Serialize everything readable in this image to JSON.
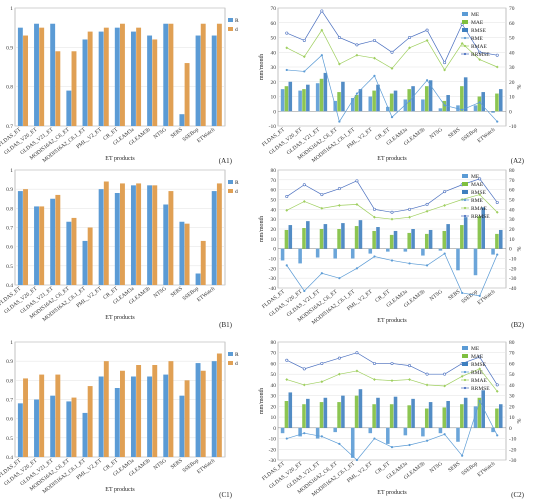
{
  "xlabel": "ET products",
  "categories": [
    "FLDAS_ET",
    "GLDAS_V20_ET",
    "GLDAS_V21_ET",
    "MODIS16A2_C6_ET",
    "MODIS16A2_C6.1_ET",
    "PML_V2_ET",
    "CR_ET",
    "GLEAM3a",
    "GLEAM3b",
    "NTSG",
    "SEBS",
    "SSEBop",
    "ETWatch"
  ],
  "colors": {
    "R": "#5b9bd5",
    "d": "#e0a054",
    "ME": "#5b9bd5",
    "MAE": "#7fbf3f",
    "RMSE": "#3f7fbf",
    "RME": "#5b9bd5",
    "RMAE": "#9fcf5f",
    "RRMSE": "#4a6fbf"
  },
  "chart_data": [
    {
      "panel": "(A1)",
      "type": "bar",
      "ylim": [
        0.7,
        1.0
      ],
      "yticks": [
        "0.7",
        "0.8",
        "0.9",
        "1"
      ],
      "series": [
        {
          "name": "R",
          "values": [
            0.95,
            0.96,
            0.96,
            0.79,
            0.92,
            0.94,
            0.95,
            0.94,
            0.93,
            0.96,
            0.73,
            0.93,
            0.93
          ]
        },
        {
          "name": "d",
          "values": [
            0.93,
            0.95,
            0.89,
            0.89,
            0.94,
            0.95,
            0.96,
            0.95,
            0.92,
            0.96,
            0.86,
            0.96,
            0.96
          ]
        }
      ]
    },
    {
      "panel": "(A2)",
      "type": "bar-line",
      "ylim": [
        -10,
        70
      ],
      "yticks": [
        "-10",
        "0",
        "10",
        "20",
        "30",
        "40",
        "50",
        "60",
        "70"
      ],
      "ylabel_left": "mm/month",
      "ylabel_right": "%",
      "bars": [
        {
          "name": "ME",
          "values": [
            15,
            14,
            19,
            7,
            9,
            10,
            3,
            8,
            8,
            2,
            4,
            4,
            -1
          ]
        },
        {
          "name": "MAE",
          "values": [
            17,
            15,
            22,
            13,
            11,
            14,
            12,
            15,
            17,
            7,
            17,
            10,
            12
          ]
        },
        {
          "name": "RMSE",
          "values": [
            20,
            18,
            26,
            20,
            15,
            18,
            14,
            17,
            21,
            11,
            23,
            13,
            15
          ]
        }
      ],
      "lines": [
        {
          "name": "RME",
          "values": [
            28,
            27,
            38,
            -7,
            12,
            24,
            -4,
            7,
            21,
            4,
            1,
            6,
            -7
          ]
        },
        {
          "name": "RMAE",
          "values": [
            43,
            37,
            55,
            32,
            38,
            36,
            29,
            43,
            48,
            28,
            46,
            35,
            30
          ]
        },
        {
          "name": "RRMSE",
          "values": [
            53,
            48,
            68,
            50,
            45,
            48,
            40,
            50,
            55,
            33,
            59,
            40,
            38
          ]
        }
      ]
    },
    {
      "panel": "(B1)",
      "type": "bar",
      "ylim": [
        0.4,
        1.0
      ],
      "yticks": [
        "0.4",
        "0.5",
        "0.6",
        "0.7",
        "0.8",
        "0.9",
        "1"
      ],
      "series": [
        {
          "name": "R",
          "values": [
            0.89,
            0.81,
            0.85,
            0.73,
            0.63,
            0.9,
            0.88,
            0.92,
            0.92,
            0.82,
            0.73,
            0.46,
            0.89
          ]
        },
        {
          "name": "d",
          "values": [
            0.9,
            0.81,
            0.87,
            0.75,
            0.7,
            0.94,
            0.93,
            0.93,
            0.92,
            0.89,
            0.72,
            0.63,
            0.93
          ]
        }
      ]
    },
    {
      "panel": "(B2)",
      "type": "bar-line",
      "ylim": [
        -40,
        80
      ],
      "yticks": [
        "-40",
        "-30",
        "-20",
        "-10",
        "0",
        "10",
        "20",
        "30",
        "40",
        "50",
        "60",
        "70",
        "80"
      ],
      "ylabel_left": "mm/month",
      "ylabel_right": "%",
      "bars": [
        {
          "name": "ME",
          "values": [
            -12,
            -15,
            -9,
            -10,
            -10,
            -5,
            -3,
            -3,
            -7,
            -2,
            -22,
            -27,
            -6
          ]
        },
        {
          "name": "MAE",
          "values": [
            19,
            21,
            20,
            20,
            23,
            18,
            14,
            16,
            15,
            18,
            24,
            33,
            15
          ]
        },
        {
          "name": "RMSE",
          "values": [
            24,
            28,
            25,
            26,
            29,
            22,
            18,
            20,
            19,
            25,
            32,
            42,
            19
          ]
        }
      ],
      "lines": [
        {
          "name": "RME",
          "values": [
            -17,
            -43,
            -25,
            -30,
            -20,
            -8,
            -12,
            -15,
            -17,
            -5,
            -45,
            -48,
            -6
          ]
        },
        {
          "name": "RMAE",
          "values": [
            39,
            48,
            41,
            44,
            45,
            32,
            30,
            32,
            38,
            44,
            50,
            55,
            37
          ]
        },
        {
          "name": "RRMSE",
          "values": [
            53,
            65,
            55,
            61,
            69,
            40,
            37,
            40,
            45,
            58,
            65,
            71,
            47
          ]
        }
      ]
    },
    {
      "panel": "(C1)",
      "type": "bar",
      "ylim": [
        0.4,
        1.0
      ],
      "yticks": [
        "0.4",
        "0.5",
        "0.6",
        "0.7",
        "0.8",
        "0.9",
        "1"
      ],
      "series": [
        {
          "name": "R",
          "values": [
            0.68,
            0.7,
            0.72,
            0.69,
            0.63,
            0.82,
            0.76,
            0.82,
            0.82,
            0.83,
            0.72,
            0.89,
            0.9
          ]
        },
        {
          "name": "d",
          "values": [
            0.81,
            0.83,
            0.83,
            0.71,
            0.77,
            0.9,
            0.85,
            0.88,
            0.88,
            0.9,
            0.8,
            0.85,
            0.94
          ]
        }
      ]
    },
    {
      "panel": "(C2)",
      "type": "bar-line",
      "ylim": [
        -30,
        80
      ],
      "yticks": [
        "-30",
        "-20",
        "-10",
        "0",
        "10",
        "20",
        "30",
        "40",
        "50",
        "60",
        "70",
        "80"
      ],
      "ylabel_left": "mm/month",
      "ylabel_right": "%",
      "bars": [
        {
          "name": "ME",
          "values": [
            -5,
            -8,
            -10,
            -4,
            -28,
            -5,
            -15,
            -7,
            -8,
            -5,
            -13,
            20,
            -4
          ]
        },
        {
          "name": "MAE",
          "values": [
            25,
            22,
            24,
            24,
            30,
            22,
            22,
            21,
            18,
            19,
            22,
            28,
            18
          ]
        },
        {
          "name": "RMSE",
          "values": [
            33,
            27,
            28,
            30,
            36,
            28,
            29,
            27,
            24,
            25,
            28,
            35,
            22
          ]
        }
      ],
      "lines": [
        {
          "name": "RME",
          "values": [
            -10,
            -5,
            -8,
            -15,
            -30,
            -10,
            -18,
            -16,
            -12,
            -6,
            -26,
            25,
            -7
          ]
        },
        {
          "name": "RMAE",
          "values": [
            45,
            40,
            43,
            50,
            53,
            45,
            44,
            45,
            40,
            39,
            48,
            55,
            34
          ]
        },
        {
          "name": "RRMSE",
          "values": [
            63,
            55,
            60,
            65,
            70,
            60,
            60,
            58,
            50,
            50,
            60,
            66,
            40
          ]
        }
      ]
    }
  ]
}
